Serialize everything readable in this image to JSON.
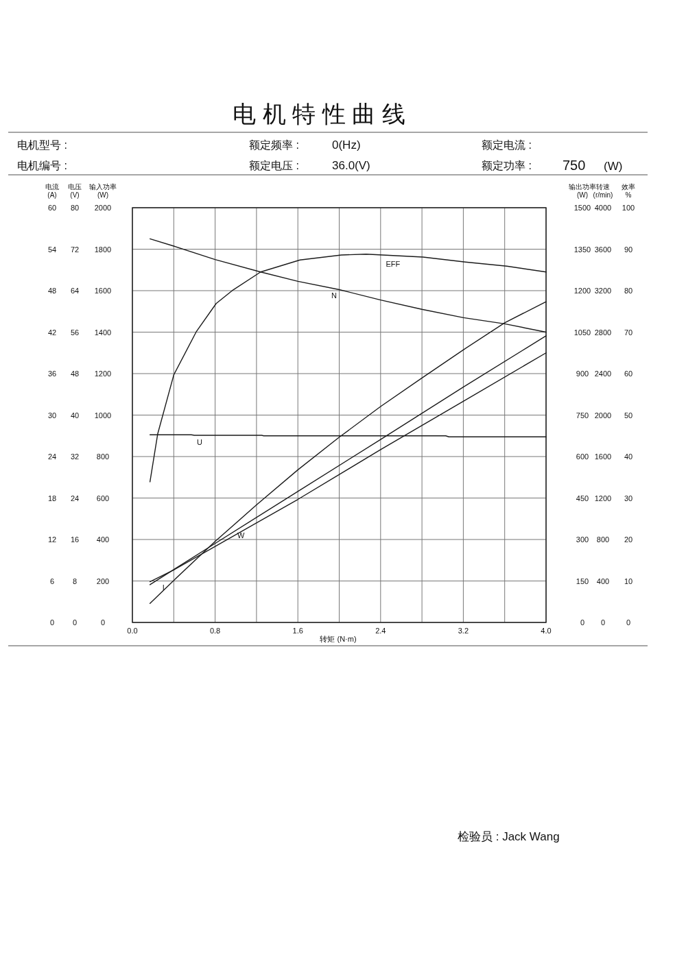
{
  "chart_data": [
    {
      "type": "line",
      "title": "电 机 特 性 曲 线",
      "xlabel": "转矩 (N·m)",
      "ylabel": "电压\n(V)",
      "grid": true,
      "xlim": [
        0,
        4
      ],
      "xticks": [
        {
          "value": 0,
          "label": "0.0"
        },
        {
          "value": 0.4,
          "label": null
        },
        {
          "value": 0.8,
          "label": "0.8"
        },
        {
          "value": 1.2,
          "label": null
        },
        {
          "value": 1.6,
          "label": "1.6"
        },
        {
          "value": 2,
          "label": null
        },
        {
          "value": 2.4,
          "label": "2.4"
        },
        {
          "value": 2.8,
          "label": null
        },
        {
          "value": 3.2,
          "label": "3.2"
        },
        {
          "value": 3.6,
          "label": null
        },
        {
          "value": 4,
          "label": "4.0"
        }
      ],
      "ylim": [
        0,
        80
      ],
      "yticks": [
        0,
        8,
        16,
        24,
        32,
        40,
        48,
        56,
        64,
        72,
        80
      ],
      "series": [
        {
          "name": "U",
          "color": "#1a1a1a",
          "x": [
            0.17,
            0.57,
            0.6,
            1.25,
            1.27,
            3.03,
            3.06,
            4.0
          ],
          "values": [
            36.2,
            36.2,
            36.1,
            36.1,
            36.0,
            36.0,
            35.8,
            35.8
          ]
        }
      ],
      "annotations": [
        "电机型号 :",
        "额定频率 :",
        "0(Hz)",
        "额定电流 :",
        "电机编号 :",
        "额定电压 :",
        "36.0(V)",
        "额定功率 :",
        "750",
        "(W)",
        "检验员 : Jack Wang"
      ]
    },
    {
      "type": "line",
      "ylabel": "电流\n(A)",
      "xlim": [
        0,
        4
      ],
      "tick_labels": "y",
      "ylim": [
        0,
        60
      ],
      "yticks": [
        0,
        6,
        12,
        18,
        24,
        30,
        36,
        42,
        48,
        54,
        60
      ],
      "series": [
        {
          "name": "I",
          "color": "#1a1a1a",
          "x": [
            0.17,
            0.4,
            0.8,
            1.6,
            2.4,
            3.2,
            4.0
          ],
          "values": [
            5.9,
            7.6,
            11.0,
            17.8,
            25.0,
            32.0,
            39.0
          ]
        }
      ]
    },
    {
      "type": "line",
      "ylabel": "输入功率\n(W)",
      "xlim": [
        0,
        4
      ],
      "tick_labels": "y",
      "ylim": [
        0,
        2000
      ],
      "yticks": [
        0,
        200,
        400,
        600,
        800,
        1000,
        1200,
        1400,
        1600,
        1800,
        2000
      ],
      "series": [
        {
          "color": "#1a1a1a",
          "x": [
            0.17,
            0.4,
            0.8,
            1.6,
            2.4,
            3.2,
            4.0
          ],
          "values": [
            182,
            255,
            381,
            632,
            882,
            1135,
            1382
          ]
        }
      ]
    },
    {
      "type": "line",
      "ylabel": "输出功率\n(W)",
      "xlim": [
        0,
        4
      ],
      "tick_labels": "y",
      "ylim": [
        0,
        1500
      ],
      "yticks": [
        0,
        150,
        300,
        450,
        600,
        750,
        900,
        1050,
        1200,
        1350,
        1500
      ],
      "series": [
        {
          "name": "W",
          "color": "#1a1a1a",
          "x": [
            0.17,
            0.4,
            0.8,
            1.2,
            1.6,
            2.0,
            2.4,
            2.8,
            3.2,
            3.6,
            4.0
          ],
          "values": [
            69,
            152,
            293,
            425,
            552,
            670,
            781,
            884,
            986,
            1084,
            1160
          ]
        }
      ]
    },
    {
      "type": "line",
      "ylabel": "转速\n(r/min)",
      "xlim": [
        0,
        4
      ],
      "tick_labels": "y",
      "ylim": [
        0,
        4000
      ],
      "yticks": [
        0,
        400,
        800,
        1200,
        1600,
        2000,
        2400,
        2800,
        3200,
        3600,
        4000
      ],
      "series": [
        {
          "name": "N",
          "color": "#1a1a1a",
          "x": [
            0.17,
            0.4,
            0.8,
            1.24,
            1.6,
            2.0,
            2.4,
            2.8,
            3.2,
            3.6,
            4.0
          ],
          "values": [
            3700,
            3630,
            3500,
            3380,
            3290,
            3210,
            3110,
            3020,
            2940,
            2880,
            2800
          ]
        }
      ]
    },
    {
      "type": "line",
      "ylabel": "效率\n%",
      "xlim": [
        0,
        4
      ],
      "tick_labels": "y",
      "ylim": [
        0,
        100
      ],
      "yticks": [
        0,
        10,
        20,
        30,
        40,
        50,
        60,
        70,
        80,
        90,
        100
      ],
      "series": [
        {
          "name": "EFF",
          "color": "#1a1a1a",
          "x": [
            0.17,
            0.245,
            0.4,
            0.62,
            0.81,
            0.975,
            1.24,
            1.62,
            2.02,
            2.26,
            2.81,
            3.22,
            3.62,
            4.0
          ],
          "values": [
            33.9,
            45.5,
            59.7,
            70.2,
            76.9,
            80.2,
            84.5,
            87.4,
            88.6,
            88.8,
            88.1,
            86.9,
            85.9,
            84.5
          ]
        }
      ]
    }
  ]
}
